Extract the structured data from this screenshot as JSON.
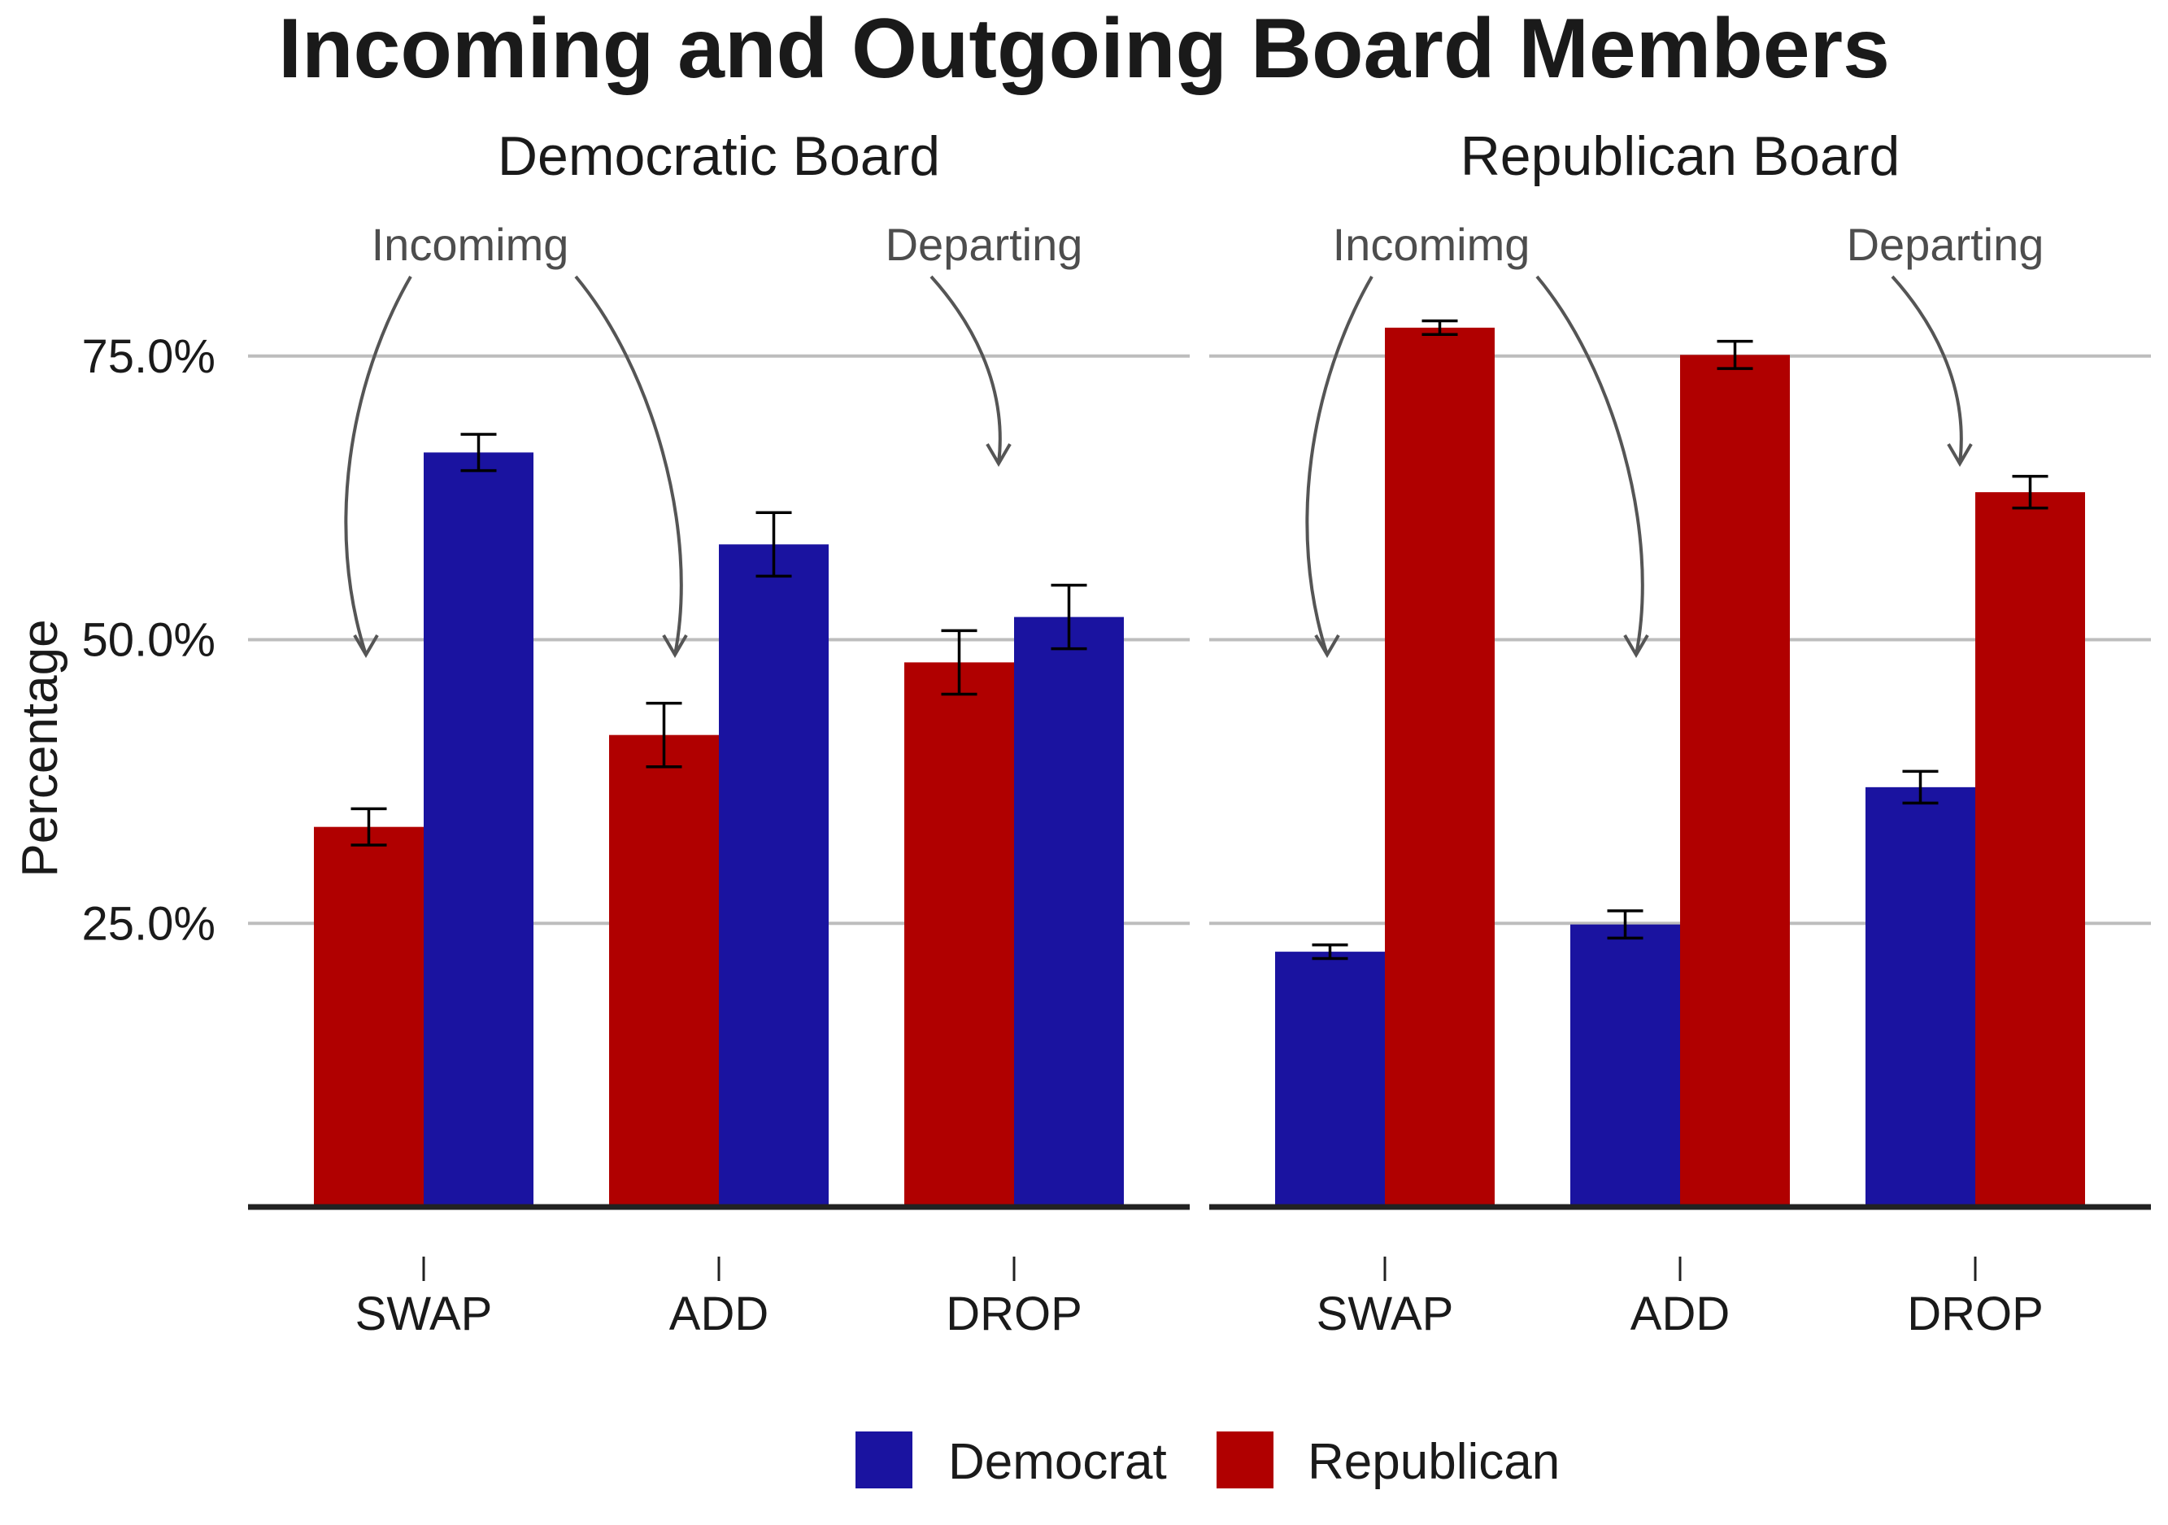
{
  "chart_data": {
    "type": "bar",
    "title": "Incoming and Outgoing Board Members",
    "ylabel": "Percentage",
    "xlabel": "",
    "ylim": [
      0,
      0.8
    ],
    "y_ticks": [
      0.25,
      0.5,
      0.75
    ],
    "y_tick_labels": [
      "25.0%",
      "50.0%",
      "75.0%"
    ],
    "grid": true,
    "legend_position": "bottom",
    "legend": [
      {
        "name": "Democrat",
        "color": "#1a13a0"
      },
      {
        "name": "Republican",
        "color": "#b00000"
      }
    ],
    "categories": [
      "SWAP",
      "ADD",
      "DROP"
    ],
    "panels": [
      {
        "title": "Democratic Board",
        "series": [
          {
            "name": "Republican",
            "color": "#b00000",
            "values": [
              0.335,
              0.416,
              0.48
            ],
            "errors": [
              0.016,
              0.028,
              0.028
            ]
          },
          {
            "name": "Democrat",
            "color": "#1a13a0",
            "values": [
              0.665,
              0.584,
              0.52
            ],
            "errors": [
              0.016,
              0.028,
              0.028
            ]
          }
        ],
        "annotations": [
          "Incomimg",
          "Departing"
        ]
      },
      {
        "title": "Republican Board",
        "series": [
          {
            "name": "Democrat",
            "color": "#1a13a0",
            "values": [
              0.225,
              0.249,
              0.37
            ],
            "errors": [
              0.006,
              0.012,
              0.014
            ]
          },
          {
            "name": "Republican",
            "color": "#b00000",
            "values": [
              0.775,
              0.751,
              0.63
            ],
            "errors": [
              0.006,
              0.012,
              0.014
            ]
          }
        ],
        "annotations": [
          "Incomimg",
          "Departing"
        ]
      }
    ]
  }
}
